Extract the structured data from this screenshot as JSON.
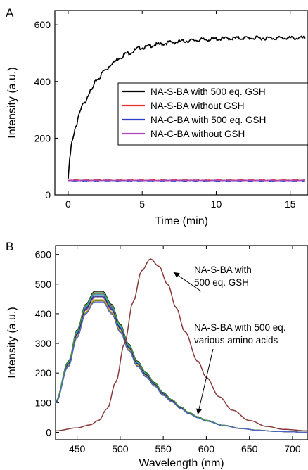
{
  "chart_data": [
    {
      "panel_label": "A",
      "type": "line",
      "xlabel": "Time (min)",
      "ylabel": "Intensity (a.u.)",
      "xlim": [
        -0.9,
        16.2
      ],
      "ylim": [
        0,
        650
      ],
      "xticks": [
        0,
        5,
        10,
        15
      ],
      "yticks": [
        0,
        200,
        400,
        600
      ],
      "grid": false,
      "legend_position": "center-right",
      "series": [
        {
          "name": "NA-S-BA with 500 eq. GSH",
          "color": "#000000",
          "x": [
            0,
            0.1,
            0.25,
            0.5,
            0.75,
            1,
            1.5,
            2,
            2.5,
            3,
            3.5,
            4,
            5,
            6,
            7,
            8,
            9,
            10,
            11,
            12,
            13,
            14,
            15,
            16
          ],
          "y": [
            55,
            130,
            185,
            240,
            285,
            318,
            365,
            410,
            440,
            465,
            485,
            500,
            520,
            530,
            538,
            543,
            547,
            550,
            552,
            553,
            553,
            553,
            553,
            553
          ]
        },
        {
          "name": "NA-S-BA without GSH",
          "color": "#e8322a",
          "x": [
            0,
            16
          ],
          "y": [
            52,
            52
          ]
        },
        {
          "name": "NA-C-BA with 500 eq. GSH",
          "color": "#2b3fc8",
          "x": [
            0,
            16
          ],
          "y": [
            50,
            50
          ]
        },
        {
          "name": "NA-C-BA without GSH",
          "color": "#b04ab6",
          "x": [
            0,
            16
          ],
          "y": [
            51,
            51
          ]
        }
      ]
    },
    {
      "panel_label": "B",
      "type": "line",
      "xlabel": "Wavelength (nm)",
      "ylabel": "Intensity (a.u.)",
      "xlim": [
        425,
        718
      ],
      "ylim": [
        -25,
        630
      ],
      "xticks": [
        450,
        500,
        550,
        600,
        650,
        700
      ],
      "yticks": [
        0,
        100,
        200,
        300,
        400,
        500,
        600
      ],
      "grid": false,
      "annotations": [
        {
          "lines": [
            "NA-S-BA with",
            "500 eq. GSH"
          ],
          "arrow_to": [
            562,
            540
          ]
        },
        {
          "lines": [
            "NA-S-BA with 500 eq.",
            "various amino acids"
          ],
          "arrow_to": [
            590,
            60
          ]
        }
      ],
      "series": [
        {
          "name": "NA-S-BA with 500 eq. GSH",
          "color": "#8b3a3a",
          "x": [
            425,
            450,
            465,
            475,
            485,
            495,
            505,
            515,
            525,
            535,
            545,
            555,
            565,
            575,
            590,
            600,
            615,
            630,
            650,
            670,
            690,
            718
          ],
          "y": [
            5,
            15,
            25,
            40,
            80,
            170,
            300,
            440,
            545,
            585,
            560,
            500,
            420,
            340,
            240,
            185,
            120,
            75,
            40,
            20,
            10,
            5
          ]
        },
        {
          "name": "amino acid 1",
          "color": "#1a1a1a",
          "peak": 480
        },
        {
          "name": "amino acid 2",
          "color": "#c04040",
          "peak": 473
        },
        {
          "name": "amino acid 3",
          "color": "#3040c0",
          "peak": 466
        },
        {
          "name": "amino acid 4",
          "color": "#30b0b0",
          "peak": 470
        },
        {
          "name": "amino acid 5",
          "color": "#b040b0",
          "peak": 458
        },
        {
          "name": "amino acid 6",
          "color": "#c0c030",
          "peak": 452
        },
        {
          "name": "amino acid 7",
          "color": "#2a2a80",
          "peak": 462
        },
        {
          "name": "amino acid 8",
          "color": "#808020",
          "peak": 448
        },
        {
          "name": "amino acid 9",
          "color": "#40a040",
          "peak": 476
        },
        {
          "name": "amino acid 10",
          "color": "#5060d0",
          "peak": 444
        }
      ],
      "base_curve": {
        "x": [
          425,
          440,
          450,
          460,
          470,
          480,
          490,
          500,
          510,
          520,
          530,
          540,
          550,
          560,
          570,
          580,
          590,
          600,
          620,
          640,
          660,
          680,
          700,
          718
        ],
        "y_frac": [
          0.22,
          0.5,
          0.72,
          0.9,
          0.99,
          0.99,
          0.9,
          0.76,
          0.62,
          0.5,
          0.42,
          0.35,
          0.28,
          0.23,
          0.18,
          0.14,
          0.11,
          0.085,
          0.05,
          0.028,
          0.015,
          0.007,
          0.003,
          0.0
        ]
      }
    }
  ]
}
